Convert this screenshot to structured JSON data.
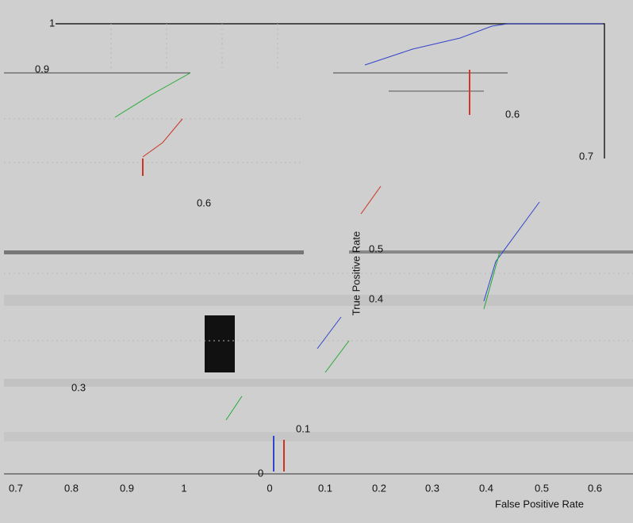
{
  "top_axis": {
    "ticks": [
      "1",
      "0.9"
    ]
  },
  "fragments": [
    "0.6",
    "0.7",
    "0.6",
    "0.5",
    "0.4",
    "0.3",
    "0.1",
    "0"
  ],
  "y_label": "True Positive Rate",
  "left_axis": {
    "ticks": [
      "0.7",
      "0.8",
      "0.9",
      "1"
    ]
  },
  "bottom_axis": {
    "ticks": [
      "0",
      "0.1",
      "0.2",
      "0.3",
      "0.4",
      "0.5",
      "0.6"
    ],
    "label": "False Positive Rate"
  }
}
